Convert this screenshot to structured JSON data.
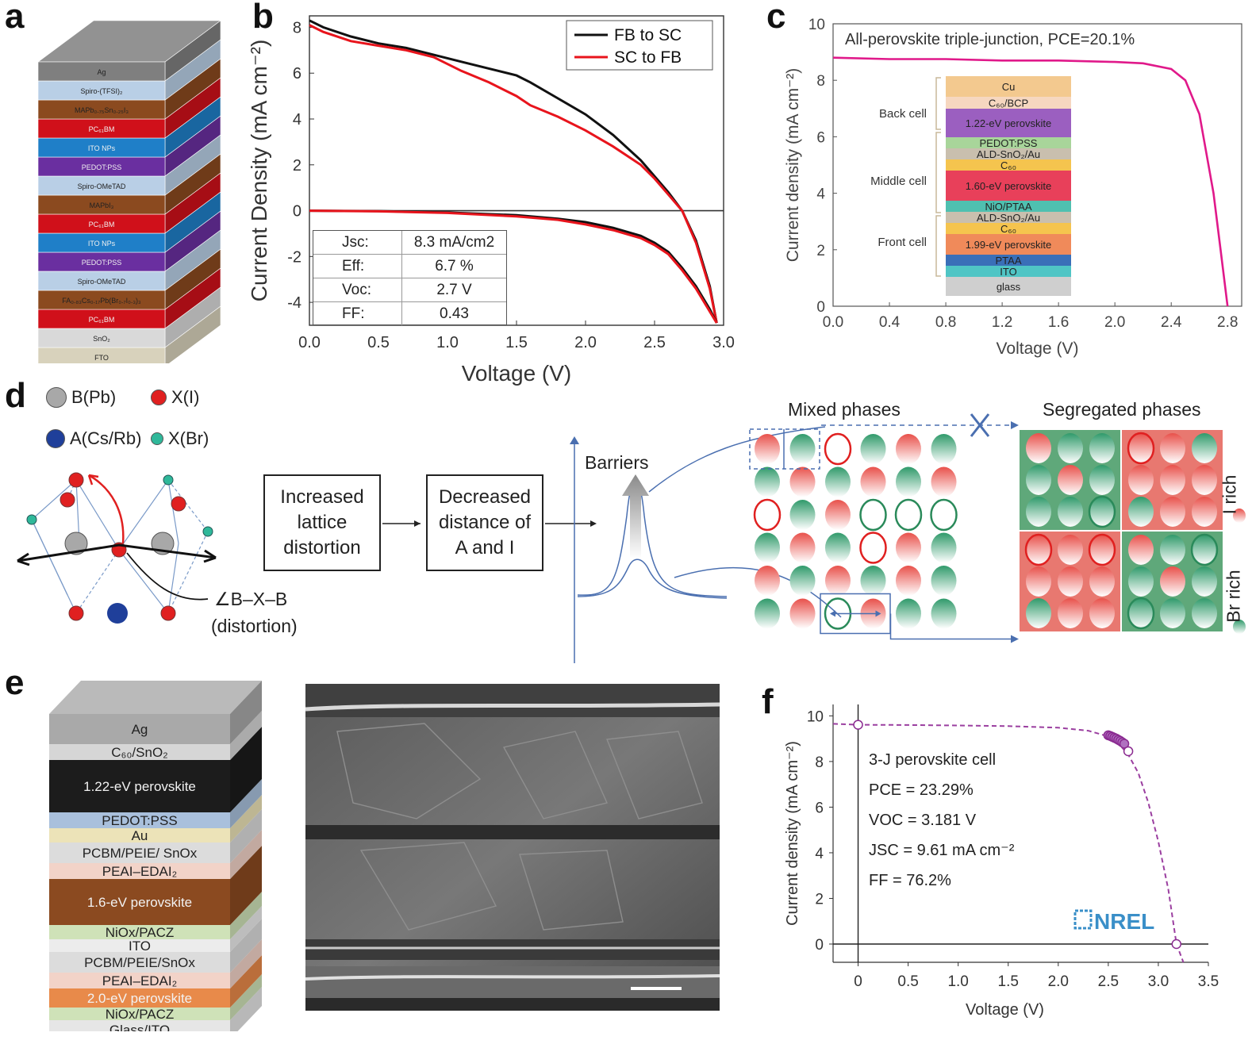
{
  "panel_letters": [
    "a",
    "b",
    "c",
    "d",
    "e",
    "f"
  ],
  "panel_a": {
    "layers": [
      "Ag",
      "Spiro-(TFSI)₂",
      "MAPb₀.₇₅Sn₀.₂₅I₃",
      "PC₆₁BM",
      "ITO NPs",
      "PEDOT:PSS",
      "Spiro-OMeTAD",
      "MAPbI₃",
      "PC₆₁BM",
      "ITO NPs",
      "PEDOT:PSS",
      "Spiro-OMeTAD",
      "FA₀.₈₃Cs₀.₁₇Pb(Br₀.₇I₀.₃)₃",
      "PC₆₁BM",
      "SnO₂",
      "FTO"
    ],
    "colors": [
      "#7f7f7f",
      "#b9cfe6",
      "#8b4a1f",
      "#d0101a",
      "#1f7fc8",
      "#6a2fa0",
      "#b9cfe6",
      "#8b4a1f",
      "#d0101a",
      "#1f7fc8",
      "#6a2fa0",
      "#b9cfe6",
      "#8b4a1f",
      "#d0101a",
      "#d9d9d9",
      "#d8d2bc"
    ]
  },
  "panel_b": {
    "chart_data": {
      "type": "line",
      "xlabel": "Voltage (V)",
      "ylabel": "Current Density (mA cm⁻²)",
      "xlim": [
        0,
        3.0
      ],
      "ylim": [
        -5,
        8.5
      ],
      "x_ticks": [
        "0.0",
        "0.5",
        "1.0",
        "1.5",
        "2.0",
        "2.5",
        "3.0"
      ],
      "y_ticks": [
        "-4",
        "-2",
        "0",
        "2",
        "4",
        "6",
        "8"
      ],
      "legend": [
        "FB to SC",
        "SC to FB"
      ],
      "legend_position": "top-right",
      "series": [
        {
          "name": "FB to SC",
          "color": "#111111",
          "x": [
            0,
            0.1,
            0.3,
            0.5,
            0.7,
            0.9,
            1.1,
            1.3,
            1.5,
            1.6,
            1.8,
            2.0,
            2.2,
            2.4,
            2.5,
            2.6,
            2.7,
            2.8,
            2.9,
            2.95
          ],
          "y": [
            8.3,
            8.0,
            7.6,
            7.3,
            7.1,
            6.8,
            6.5,
            6.2,
            5.9,
            5.6,
            4.9,
            4.2,
            3.3,
            2.2,
            1.5,
            0.8,
            0.0,
            -1.3,
            -3.3,
            -4.9
          ]
        },
        {
          "name": "SC to FB",
          "color": "#e8141c",
          "x": [
            0,
            0.1,
            0.3,
            0.5,
            0.7,
            0.9,
            1.1,
            1.3,
            1.5,
            1.6,
            1.8,
            2.0,
            2.2,
            2.4,
            2.5,
            2.6,
            2.7,
            2.8,
            2.9,
            2.95
          ],
          "y": [
            8.1,
            7.8,
            7.4,
            7.2,
            7.0,
            6.7,
            6.1,
            5.6,
            5.0,
            4.6,
            4.1,
            3.5,
            2.8,
            2.0,
            1.4,
            0.7,
            0.0,
            -1.4,
            -3.4,
            -4.9
          ]
        },
        {
          "name": "dark FB to SC",
          "color": "#111111",
          "x": [
            0,
            0.5,
            1.0,
            1.5,
            1.8,
            2.0,
            2.2,
            2.4,
            2.5,
            2.6,
            2.7,
            2.8,
            2.9,
            2.95
          ],
          "y": [
            0.0,
            -0.02,
            -0.08,
            -0.2,
            -0.35,
            -0.5,
            -0.75,
            -1.1,
            -1.4,
            -1.8,
            -2.5,
            -3.3,
            -4.3,
            -4.9
          ]
        },
        {
          "name": "dark SC to FB",
          "color": "#e8141c",
          "x": [
            0,
            0.5,
            1.0,
            1.5,
            1.8,
            2.0,
            2.2,
            2.4,
            2.5,
            2.6,
            2.7,
            2.8,
            2.9,
            2.95
          ],
          "y": [
            0.0,
            -0.03,
            -0.1,
            -0.25,
            -0.4,
            -0.6,
            -0.85,
            -1.2,
            -1.5,
            -1.9,
            -2.6,
            -3.4,
            -4.4,
            -4.9
          ]
        }
      ],
      "table": [
        [
          "Jsc:",
          "8.3 mA/cm2"
        ],
        [
          "Eff:",
          "6.7 %"
        ],
        [
          "Voc:",
          "2.7 V"
        ],
        [
          "FF:",
          "0.43"
        ]
      ]
    }
  },
  "panel_c": {
    "chart_data": {
      "type": "line",
      "title": "All-perovskite triple-junction, PCE=20.1%",
      "xlabel": "Voltage (V)",
      "ylabel": "Current density (mA cm⁻²)",
      "xlim": [
        0,
        2.9
      ],
      "ylim": [
        0,
        10
      ],
      "x_ticks": [
        "0.0",
        "0.4",
        "0.8",
        "1.2",
        "1.6",
        "2.0",
        "2.4",
        "2.8"
      ],
      "y_ticks": [
        "0",
        "2",
        "4",
        "6",
        "8",
        "10"
      ],
      "series": [
        {
          "color": "#e0198a",
          "x": [
            0,
            0.4,
            0.8,
            1.2,
            1.6,
            2.0,
            2.2,
            2.4,
            2.5,
            2.6,
            2.7,
            2.75,
            2.8
          ],
          "y": [
            8.8,
            8.75,
            8.75,
            8.7,
            8.7,
            8.65,
            8.6,
            8.4,
            8.0,
            6.8,
            4.0,
            2.0,
            0
          ]
        }
      ]
    },
    "stack_groups": [
      "Back cell",
      "Middle cell",
      "Front cell"
    ],
    "stack_layers": [
      {
        "label": "Cu",
        "color": "#f3c98f"
      },
      {
        "label": "C₆₀/BCP",
        "color": "#f6d7c0"
      },
      {
        "label": "1.22-eV perovskite",
        "color": "#9b5fc0"
      },
      {
        "label": "PEDOT:PSS",
        "color": "#a8d59a"
      },
      {
        "label": "ALD-SnO₂/Au",
        "color": "#c9bfae"
      },
      {
        "label": "C₆₀",
        "color": "#f5c44e"
      },
      {
        "label": "1.60-eV perovskite",
        "color": "#e8405a"
      },
      {
        "label": "NiO/PTAA",
        "color": "#4fc0b0"
      },
      {
        "label": "ALD-SnO₂/Au",
        "color": "#c9bfae"
      },
      {
        "label": "C₆₀",
        "color": "#f5c44e"
      },
      {
        "label": "1.99-eV perovskite",
        "color": "#f08a5a"
      },
      {
        "label": "PTAA",
        "color": "#3a6fb8"
      },
      {
        "label": "ITO",
        "color": "#4fc5c5"
      },
      {
        "label": "glass",
        "color": "#cfcfcf"
      }
    ]
  },
  "panel_d": {
    "legend": [
      {
        "label": "B(Pb)",
        "color": "#a8a8a8"
      },
      {
        "label": "X(I)",
        "color": "#e02020"
      },
      {
        "label": "A(Cs/Rb)",
        "color": "#1f3f9a"
      },
      {
        "label": "X(Br)",
        "color": "#2fb89a"
      }
    ],
    "angle_label": "∠B–X–B",
    "angle_sublabel": "(distortion)",
    "box1": "Increased lattice distortion",
    "box2": "Decreased distance of A and I",
    "barriers_label": "Barriers",
    "mixed_label": "Mixed phases",
    "segregated_label": "Segregated phases",
    "i_rich": "I rich",
    "br_rich": "Br rich",
    "mixed_grid": [
      [
        "r",
        "g",
        "R",
        "g",
        "r",
        "g"
      ],
      [
        "g",
        "r",
        "g",
        "r",
        "g",
        "r"
      ],
      [
        "R",
        "g",
        "r",
        "G",
        "G",
        "x"
      ],
      [
        "g",
        "r",
        "g",
        "R",
        "r",
        "g"
      ],
      [
        "r",
        "g",
        "r",
        "g",
        "r",
        "g"
      ],
      [
        "g",
        "r",
        "G",
        "r",
        "g",
        "g"
      ]
    ]
  },
  "panel_e": {
    "layers": [
      {
        "label": "Ag",
        "color": "#a9a9a9"
      },
      {
        "label": "C₆₀/SnO₂",
        "color": "#d6d6d6"
      },
      {
        "label": "1.22-eV perovskite",
        "color": "#1c1c1c"
      },
      {
        "label": "PEDOT:PSS",
        "color": "#a9c0dc"
      },
      {
        "label": "Au",
        "color": "#ece3b8"
      },
      {
        "label": "PCBM/PEIE/ SnOx",
        "color": "#dcdcdc"
      },
      {
        "label": "PEAI–EDAI₂",
        "color": "#f2d3c8"
      },
      {
        "label": "1.6-eV perovskite",
        "color": "#8b4a20"
      },
      {
        "label": "NiOx/PACZ",
        "color": "#cfe2b8"
      },
      {
        "label": "ITO",
        "color": "#ececec"
      },
      {
        "label": "PCBM/PEIE/SnOx",
        "color": "#dcdcdc"
      },
      {
        "label": "PEAI–EDAI₂",
        "color": "#f2d3c8"
      },
      {
        "label": "2.0-eV perovskite",
        "color": "#e88a4a"
      },
      {
        "label": "NiOx/PACZ",
        "color": "#cfe2b8"
      },
      {
        "label": "Glass/ITO",
        "color": "#e6e6e6"
      }
    ]
  },
  "panel_f": {
    "chart_data": {
      "type": "line",
      "xlabel": "Voltage (V)",
      "ylabel": "Current density (mA cm⁻²)",
      "xlim": [
        -0.25,
        3.5
      ],
      "ylim": [
        -0.8,
        10.5
      ],
      "x_ticks": [
        "0",
        "0.5",
        "1.0",
        "1.5",
        "2.0",
        "2.5",
        "3.0",
        "3.5"
      ],
      "y_ticks": [
        "0",
        "2",
        "4",
        "6",
        "8",
        "10"
      ],
      "series": [
        {
          "color": "#9b3fa0",
          "x": [
            -0.25,
            0,
            0.5,
            1.0,
            1.5,
            2.0,
            2.3,
            2.5,
            2.6,
            2.7,
            2.8,
            2.9,
            3.0,
            3.1,
            3.181,
            3.25
          ],
          "y": [
            9.65,
            9.61,
            9.6,
            9.58,
            9.55,
            9.48,
            9.35,
            9.1,
            8.8,
            8.3,
            7.5,
            6.2,
            4.5,
            2.4,
            0,
            -0.8
          ]
        }
      ],
      "markers": {
        "x": [
          0,
          2.5,
          2.52,
          2.54,
          2.56,
          2.58,
          2.6,
          2.62,
          2.64,
          2.66,
          2.7,
          3.181
        ],
        "y": [
          9.61,
          9.15,
          9.12,
          9.08,
          9.04,
          9.0,
          8.95,
          8.9,
          8.84,
          8.78,
          8.45,
          0
        ]
      }
    },
    "annotations": [
      "3-J perovskite cell",
      "PCE = 23.29%",
      "VOC = 3.181 V",
      "JSC = 9.61 mA cm⁻²",
      "FF = 76.2%"
    ],
    "logo": "NREL"
  }
}
